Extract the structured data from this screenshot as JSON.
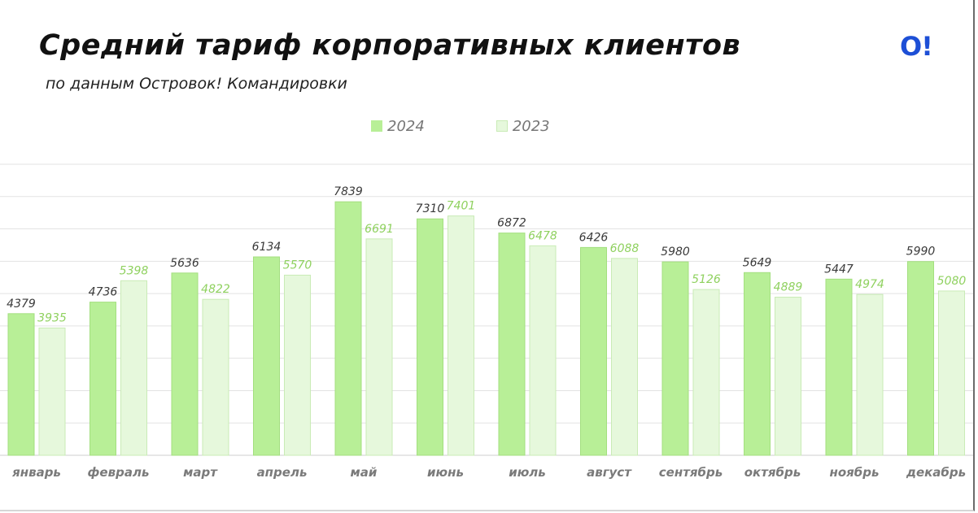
{
  "header": {
    "title": "Средний тариф корпоративных клиентов",
    "subtitle": "по данным Островок! Командировки",
    "logo_text": "O!",
    "logo_color": "#1d4fd6"
  },
  "chart_data": {
    "type": "bar",
    "categories": [
      "январь",
      "февраль",
      "март",
      "апрель",
      "май",
      "июнь",
      "июль",
      "август",
      "сентябрь",
      "октябрь",
      "ноябрь",
      "декабрь"
    ],
    "series": [
      {
        "name": "2024",
        "values": [
          4379,
          4736,
          5636,
          6134,
          7839,
          7310,
          6872,
          6426,
          5980,
          5649,
          5447,
          5990
        ],
        "color": "#b8ef97",
        "stroke": "#a3df7f",
        "label_color": "#3a3a3a",
        "label_text": [
          "4379",
          "4736",
          "5636",
          "6134",
          "7839",
          "7310",
          "6872",
          "6426",
          "5980",
          "5649",
          "5447",
          "5990"
        ]
      },
      {
        "name": "2023",
        "values": [
          3935,
          5398,
          4822,
          5570,
          6691,
          7401,
          6478,
          6088,
          5126,
          4889,
          4974,
          5080
        ],
        "color": "#e6f8dc",
        "stroke": "#c9ebb6",
        "label_color": "#8fd15f",
        "label_text": [
          "3935",
          "5398",
          "4822",
          "5570",
          "6691",
          "7401",
          "6478",
          "6088",
          "5126",
          "4889",
          "4974",
          "5080"
        ]
      }
    ],
    "ylim": [
      0,
      9000
    ],
    "grid": true,
    "legend": "top-center"
  }
}
